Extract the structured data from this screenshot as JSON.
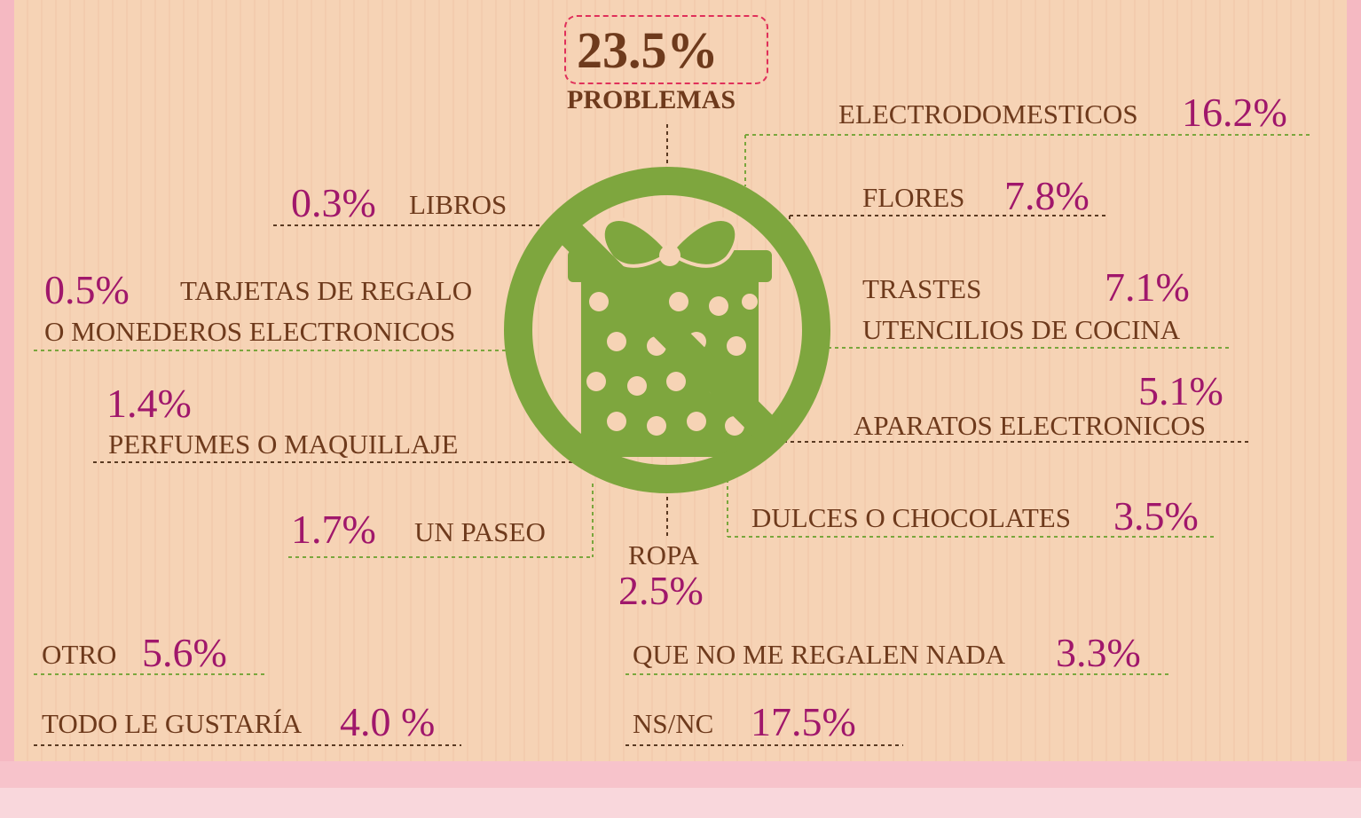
{
  "header": {
    "value": "23.5%",
    "label": "PROBLEMAS"
  },
  "items": [
    {
      "label": [
        "ELECTRODOMESTICOS"
      ],
      "value": "16.2%"
    },
    {
      "label": [
        "FLORES"
      ],
      "value": "7.8%"
    },
    {
      "label": [
        "LIBROS"
      ],
      "value": "0.3%"
    },
    {
      "label": [
        "TARJETAS DE REGALO",
        "O MONEDEROS ELECTRONICOS"
      ],
      "value": "0.5%"
    },
    {
      "label": [
        "TRASTES",
        "UTENCILIOS DE COCINA"
      ],
      "value": "7.1%"
    },
    {
      "label": [
        "PERFUMES O MAQUILLAJE"
      ],
      "value": "1.4%"
    },
    {
      "label": [
        "APARATOS ELECTRONICOS"
      ],
      "value": "5.1%"
    },
    {
      "label": [
        "UN PASEO"
      ],
      "value": "1.7%"
    },
    {
      "label": [
        "DULCES O CHOCOLATES"
      ],
      "value": "3.5%"
    },
    {
      "label": [
        "ROPA"
      ],
      "value": "2.5%"
    },
    {
      "label": [
        "OTRO"
      ],
      "value": "5.6%"
    },
    {
      "label": [
        "QUE NO ME REGALEN NADA"
      ],
      "value": "3.3%"
    },
    {
      "label": [
        "TODO LE GUSTARÍA"
      ],
      "value": "4.0 %"
    },
    {
      "label": [
        "NS/NC"
      ],
      "value": "17.5%"
    }
  ]
}
